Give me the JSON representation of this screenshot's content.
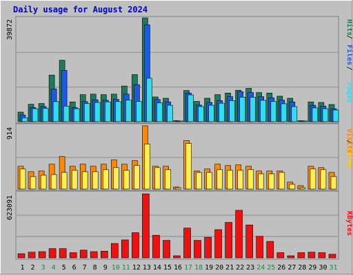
{
  "chart_data": [
    {
      "type": "bar",
      "title": "Daily usage for August 2024",
      "panel": "hits-files-pages",
      "ymax": 39872,
      "ylabel_max": "39872",
      "axis_labels": [
        "Pages",
        "Files",
        "Hits"
      ],
      "categories": [
        "1",
        "2",
        "3",
        "4",
        "5",
        "6",
        "7",
        "8",
        "9",
        "10",
        "11",
        "12",
        "13",
        "14",
        "15",
        "16",
        "17",
        "18",
        "19",
        "20",
        "21",
        "22",
        "23",
        "24",
        "25",
        "26",
        "27",
        "28",
        "29",
        "30",
        "31"
      ],
      "series": [
        {
          "name": "Hits",
          "color": "#1f7a5c",
          "values": [
            3700,
            6700,
            7000,
            17900,
            23600,
            7600,
            10400,
            10600,
            10400,
            10600,
            13700,
            18100,
            39872,
            9500,
            9000,
            400,
            12000,
            7800,
            9000,
            10400,
            11000,
            12100,
            12800,
            11200,
            11000,
            9800,
            9000,
            400,
            7600,
            7400,
            6600
          ]
        },
        {
          "name": "Files",
          "color": "#1e5adf",
          "values": [
            2600,
            5400,
            5800,
            12600,
            19700,
            5400,
            7700,
            8400,
            8200,
            8600,
            10600,
            14200,
            37200,
            8500,
            7600,
            300,
            11000,
            6400,
            7400,
            8100,
            9600,
            11500,
            11200,
            9600,
            9200,
            8300,
            7600,
            300,
            6300,
            6000,
            5000
          ]
        },
        {
          "name": "Pages",
          "color": "#33ddee",
          "values": [
            1500,
            5000,
            5100,
            7700,
            6000,
            5000,
            7000,
            7400,
            7600,
            7700,
            8300,
            7800,
            16700,
            7200,
            6300,
            200,
            10300,
            5800,
            6300,
            7100,
            8100,
            9400,
            9400,
            8200,
            7800,
            6900,
            5800,
            200,
            5300,
            5000,
            4500
          ]
        }
      ]
    },
    {
      "type": "bar",
      "panel": "visits-sites",
      "ymax": 914,
      "ylabel_max": "914",
      "axis_labels": [
        "Sites",
        "Visits"
      ],
      "categories": [
        "1",
        "2",
        "3",
        "4",
        "5",
        "6",
        "7",
        "8",
        "9",
        "10",
        "11",
        "12",
        "13",
        "14",
        "15",
        "16",
        "17",
        "18",
        "19",
        "20",
        "21",
        "22",
        "23",
        "24",
        "25",
        "26",
        "27",
        "28",
        "29",
        "30",
        "31"
      ],
      "series": [
        {
          "name": "Visits",
          "color": "#ff8800",
          "values": [
            330,
            250,
            260,
            360,
            470,
            330,
            360,
            330,
            360,
            420,
            360,
            410,
            914,
            330,
            330,
            30,
            700,
            260,
            290,
            360,
            340,
            350,
            330,
            260,
            260,
            260,
            100,
            50,
            330,
            310,
            240
          ]
        },
        {
          "name": "Sites",
          "color": "#ffee55",
          "values": [
            290,
            180,
            200,
            210,
            240,
            270,
            250,
            250,
            280,
            310,
            270,
            340,
            650,
            310,
            280,
            20,
            660,
            240,
            240,
            280,
            270,
            270,
            280,
            220,
            220,
            240,
            70,
            20,
            290,
            280,
            180
          ]
        }
      ]
    },
    {
      "type": "bar",
      "panel": "kbytes",
      "ymax": 623091,
      "ylabel_max": "623091",
      "axis_labels": [
        "KBytes"
      ],
      "categories": [
        "1",
        "2",
        "3",
        "4",
        "5",
        "6",
        "7",
        "8",
        "9",
        "10",
        "11",
        "12",
        "13",
        "14",
        "15",
        "16",
        "17",
        "18",
        "19",
        "20",
        "21",
        "22",
        "23",
        "24",
        "25",
        "26",
        "27",
        "28",
        "29",
        "30",
        "31"
      ],
      "series": [
        {
          "name": "KBytes",
          "color": "#ee1111",
          "values": [
            40000,
            55000,
            60000,
            90000,
            90000,
            50000,
            75000,
            60000,
            65000,
            140000,
            175000,
            245000,
            623091,
            220000,
            170000,
            20000,
            290000,
            170000,
            200000,
            275000,
            345000,
            463000,
            320000,
            210000,
            160000,
            50000,
            20000,
            50000,
            55000,
            50000,
            35000
          ]
        }
      ]
    }
  ],
  "x_label_colors": {
    "weekday": "#000000",
    "weekend": "#1a8a4a"
  },
  "weekend_days": [
    "3",
    "4",
    "10",
    "11",
    "17",
    "18",
    "24",
    "25",
    "31"
  ],
  "colors": {
    "background": "#c0c0c0",
    "plot_bg": "#c0c0c0",
    "title": "#0000cc"
  }
}
